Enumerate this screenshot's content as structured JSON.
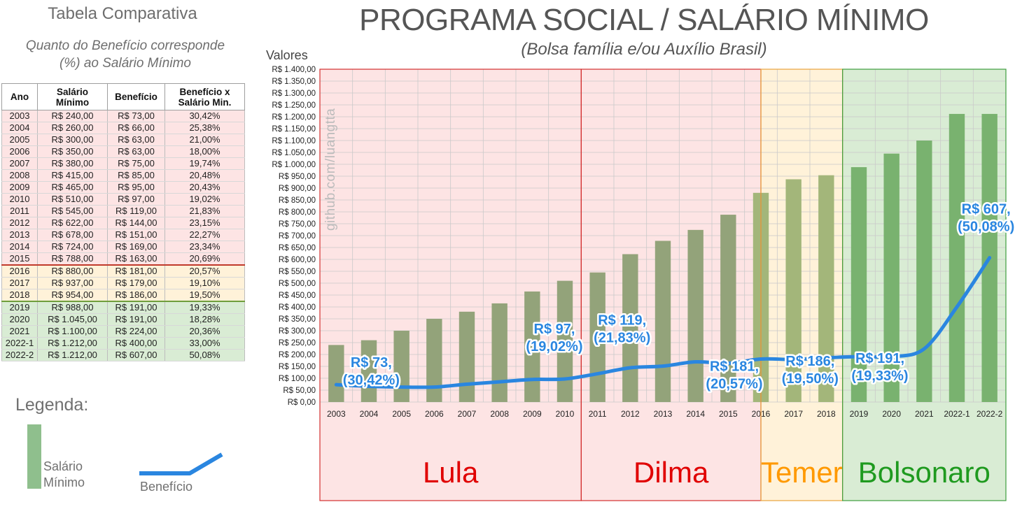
{
  "table": {
    "title": "Tabela Comparativa",
    "subtitle_line1": "Quanto do Benefício corresponde",
    "subtitle_line2": "(%) ao Salário Mínimo",
    "headers": {
      "ano": "Ano",
      "salario_1": "Salário",
      "salario_2": "Mínimo",
      "beneficio": "Benefício",
      "ratio_1": "Benefício x",
      "ratio_2": "Salário Min."
    },
    "rows": [
      {
        "ano": "2003",
        "salario": "R$ 240,00",
        "beneficio": "R$ 73,00",
        "pct": "30,42%",
        "era": "lula"
      },
      {
        "ano": "2004",
        "salario": "R$ 260,00",
        "beneficio": "R$ 66,00",
        "pct": "25,38%",
        "era": "lula"
      },
      {
        "ano": "2005",
        "salario": "R$ 300,00",
        "beneficio": "R$ 63,00",
        "pct": "21,00%",
        "era": "lula"
      },
      {
        "ano": "2006",
        "salario": "R$ 350,00",
        "beneficio": "R$ 63,00",
        "pct": "18,00%",
        "era": "lula"
      },
      {
        "ano": "2007",
        "salario": "R$ 380,00",
        "beneficio": "R$ 75,00",
        "pct": "19,74%",
        "era": "lula"
      },
      {
        "ano": "2008",
        "salario": "R$ 415,00",
        "beneficio": "R$ 85,00",
        "pct": "20,48%",
        "era": "lula"
      },
      {
        "ano": "2009",
        "salario": "R$ 465,00",
        "beneficio": "R$ 95,00",
        "pct": "20,43%",
        "era": "lula"
      },
      {
        "ano": "2010",
        "salario": "R$ 510,00",
        "beneficio": "R$ 97,00",
        "pct": "19,02%",
        "era": "lula"
      },
      {
        "ano": "2011",
        "salario": "R$ 545,00",
        "beneficio": "R$ 119,00",
        "pct": "21,83%",
        "era": "lula"
      },
      {
        "ano": "2012",
        "salario": "R$ 622,00",
        "beneficio": "R$ 144,00",
        "pct": "23,15%",
        "era": "lula"
      },
      {
        "ano": "2013",
        "salario": "R$ 678,00",
        "beneficio": "R$ 151,00",
        "pct": "22,27%",
        "era": "lula"
      },
      {
        "ano": "2014",
        "salario": "R$ 724,00",
        "beneficio": "R$ 169,00",
        "pct": "23,34%",
        "era": "lula"
      },
      {
        "ano": "2015",
        "salario": "R$ 788,00",
        "beneficio": "R$ 163,00",
        "pct": "20,69%",
        "era": "lula"
      },
      {
        "ano": "2016",
        "salario": "R$ 880,00",
        "beneficio": "R$ 181,00",
        "pct": "20,57%",
        "era": "temer"
      },
      {
        "ano": "2017",
        "salario": "R$ 937,00",
        "beneficio": "R$ 179,00",
        "pct": "19,10%",
        "era": "temer"
      },
      {
        "ano": "2018",
        "salario": "R$ 954,00",
        "beneficio": "R$ 186,00",
        "pct": "19,50%",
        "era": "temer"
      },
      {
        "ano": "2019",
        "salario": "R$ 988,00",
        "beneficio": "R$ 191,00",
        "pct": "19,33%",
        "era": "bolsonaro"
      },
      {
        "ano": "2020",
        "salario": "R$ 1.045,00",
        "beneficio": "R$ 191,00",
        "pct": "18,28%",
        "era": "bolsonaro"
      },
      {
        "ano": "2021",
        "salario": "R$ 1.100,00",
        "beneficio": "R$ 224,00",
        "pct": "20,36%",
        "era": "bolsonaro"
      },
      {
        "ano": "2022-1",
        "salario": "R$ 1.212,00",
        "beneficio": "R$ 400,00",
        "pct": "33,00%",
        "era": "bolsonaro"
      },
      {
        "ano": "2022-2",
        "salario": "R$ 1.212,00",
        "beneficio": "R$ 607,00",
        "pct": "50,08%",
        "era": "bolsonaro"
      }
    ]
  },
  "legend": {
    "title": "Legenda:",
    "bar_label_1": "Salário",
    "bar_label_2": "Mínimo",
    "line_label": "Benefício"
  },
  "watermark": "github.com/luangtta",
  "colors": {
    "bar": "#8ab481",
    "line": "#2a86e0",
    "lula_bg": "#fde4e4",
    "temer_bg": "#fff2d9",
    "bolsonaro_bg": "#d9ecd4",
    "lula_text": "#e00000",
    "dilma_text": "#e00000",
    "temer_text": "#ff9900",
    "bolsonaro_text": "#1f9a1f"
  },
  "chart_data": {
    "type": "bar",
    "title": "PROGRAMA SOCIAL / SALÁRIO MÍNIMO",
    "subtitle": "(Bolsa família e/ou Auxílio Brasil)",
    "ylabel": "Valores",
    "xlabel": "",
    "ylim": [
      0,
      1400
    ],
    "ytick_step": 50,
    "ytick_prefix": "R$ ",
    "grid": true,
    "categories": [
      "2003",
      "2004",
      "2005",
      "2006",
      "2007",
      "2008",
      "2009",
      "2010",
      "2011",
      "2012",
      "2013",
      "2014",
      "2015",
      "2016",
      "2017",
      "2018",
      "2019",
      "2020",
      "2021",
      "2022-1",
      "2022-2"
    ],
    "series": [
      {
        "name": "Salário Mínimo",
        "kind": "bar",
        "values": [
          240,
          260,
          300,
          350,
          380,
          415,
          465,
          510,
          545,
          622,
          678,
          724,
          788,
          880,
          937,
          954,
          988,
          1045,
          1100,
          1212,
          1212
        ]
      },
      {
        "name": "Benefício",
        "kind": "line",
        "values": [
          73,
          66,
          63,
          63,
          75,
          85,
          95,
          97,
          119,
          144,
          151,
          169,
          163,
          181,
          179,
          186,
          191,
          191,
          224,
          400,
          607
        ]
      }
    ],
    "eras": [
      {
        "name": "Lula",
        "start": "2003",
        "end": "2010",
        "color_key": "lula"
      },
      {
        "name": "Dilma",
        "start": "2011",
        "end": "2016",
        "color_key": "dilma"
      },
      {
        "name": "Temer",
        "start": "2016",
        "end": "2018",
        "color_key": "temer"
      },
      {
        "name": "Bolsonaro",
        "start": "2019",
        "end": "2022-2",
        "color_key": "bolsonaro"
      }
    ],
    "annotations": [
      {
        "category": "2003",
        "line1": "R$ 73,",
        "line2": "(30,42%)",
        "placement": "above"
      },
      {
        "category": "2010",
        "line1": "R$ 97,",
        "line2": "(19,02%)",
        "placement": "above"
      },
      {
        "category": "2011",
        "line1": "R$ 119,",
        "line2": "(21,83%)",
        "placement": "above"
      },
      {
        "category": "2016",
        "line1": "R$ 181,",
        "line2": "(20,57%)",
        "placement": "below"
      },
      {
        "category": "2018",
        "line1": "R$ 186,",
        "line2": "(19,50%)",
        "placement": "below"
      },
      {
        "category": "2019",
        "line1": "R$ 191,",
        "line2": "(19,33%)",
        "placement": "below"
      },
      {
        "category": "2022-2",
        "line1": "R$ 607,",
        "line2": "(50,08%)",
        "placement": "above"
      }
    ]
  }
}
